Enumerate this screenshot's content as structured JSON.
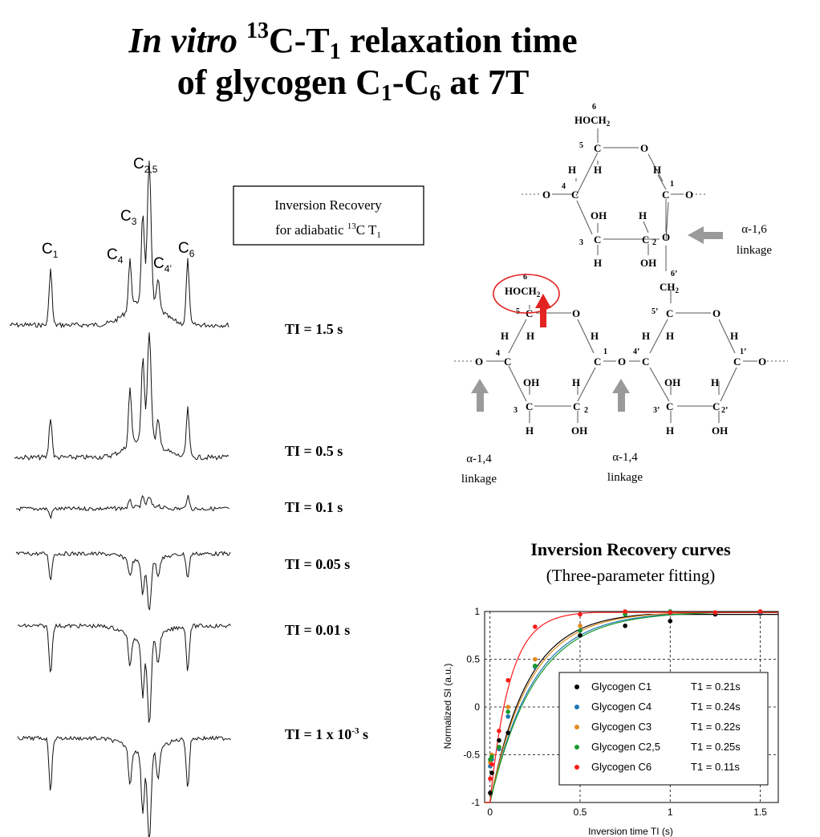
{
  "title": {
    "line1_prefix": "In vitro",
    "line1_iso": "13",
    "line1_mid": "C-T",
    "line1_sub": "1",
    "line1_suffix": " relaxation time",
    "line2_prefix": "of glycogen C",
    "line2_sub1": "1",
    "line2_mid": "-C",
    "line2_sub2": "6",
    "line2_suffix": " at 7T"
  },
  "spectra": {
    "peak_labels": [
      {
        "base": "C",
        "sub": "1"
      },
      {
        "base": "C",
        "sub": "4"
      },
      {
        "base": "C",
        "sub": "3"
      },
      {
        "base": "C",
        "sub": "2,5"
      },
      {
        "base": "C",
        "sub": "4’"
      },
      {
        "base": "C",
        "sub": "6"
      }
    ],
    "inversion_times": [
      "TI = 1.5 s",
      "TI = 0.5 s",
      "TI = 0.1 s",
      "TI = 0.05 s",
      "TI = 0.01 s",
      "TI = 1 x 10"
    ],
    "last_ti_exp": "-3",
    "last_ti_unit": " s",
    "method_box": {
      "line1": "Inversion Recovery",
      "line2_prefix": "for adiabatic ",
      "line2_iso": "13",
      "line2_mid": "C T",
      "line2_sub": "1"
    }
  },
  "structure": {
    "atoms": {
      "hoch2": "HOCH",
      "ch2": "CH",
      "two": "2",
      "c": "C",
      "o": "O",
      "h": "H",
      "oh": "OH",
      "num1": "1",
      "num2": "2",
      "num3": "3",
      "num4": "4",
      "num5": "5",
      "num6": "6",
      "num1p": "1’",
      "num2p": "2’",
      "num3p": "3’",
      "num4p": "4’",
      "num5p": "5’",
      "num6p": "6’"
    },
    "linkage_a16": {
      "name": "α-1,6",
      "word": "linkage"
    },
    "linkage_a14_left": {
      "name": "α-1,4",
      "word": "linkage"
    },
    "linkage_a14_right": {
      "name": "α-1,4",
      "word": "linkage"
    },
    "highlight_color": "#e32222",
    "arrow_color": "#9a9a9a"
  },
  "chart_data": {
    "type": "scatter",
    "title": "Inversion Recovery curves",
    "subtitle": "(Three-parameter fitting)",
    "xlabel": "Inversion time TI (s)",
    "ylabel": "Normalized SI (a.u.)",
    "xlim": [
      -0.03,
      1.6
    ],
    "ylim": [
      -1,
      1
    ],
    "x_ticks": [
      "0",
      "0.5",
      "1",
      "1.5"
    ],
    "y_ticks": [
      "-1",
      "-0.5",
      "0",
      "0.5",
      "1"
    ],
    "grid": true,
    "legend_position": "bottom-right",
    "x": [
      0.001,
      0.01,
      0.05,
      0.1,
      0.25,
      0.5,
      0.75,
      1.0,
      1.25,
      1.5
    ],
    "series": [
      {
        "name": "Glycogen C1",
        "t1_label": "T1 = 0.21s",
        "t1": 0.21,
        "color": "#000000",
        "values": [
          -0.9,
          -0.69,
          -0.35,
          -0.27,
          0.43,
          0.75,
          0.85,
          0.9,
          0.97,
          0.98
        ]
      },
      {
        "name": "Glycogen C4",
        "t1_label": "T1 = 0.24s",
        "t1": 0.24,
        "color": "#1f77b4",
        "values": [
          -0.62,
          -0.55,
          -0.44,
          -0.1,
          0.42,
          0.8,
          0.97,
          0.99,
          0.99,
          0.99
        ]
      },
      {
        "name": "Glycogen C3",
        "t1_label": "T1 = 0.22s",
        "t1": 0.22,
        "color": "#e08a1e",
        "values": [
          -0.58,
          -0.5,
          -0.42,
          0.0,
          0.5,
          0.85,
          0.98,
          1.0,
          0.99,
          1.0
        ]
      },
      {
        "name": "Glycogen C2,5",
        "t1_label": "T1 = 0.25s",
        "t1": 0.25,
        "color": "#1a9a2e",
        "values": [
          -0.55,
          -0.52,
          -0.42,
          -0.05,
          0.43,
          0.8,
          0.97,
          1.0,
          0.99,
          1.0
        ]
      },
      {
        "name": "Glycogen C6",
        "t1_label": "T1 = 0.11s",
        "t1": 0.11,
        "color": "#ff1a1a",
        "values": [
          -0.75,
          -0.6,
          -0.25,
          0.28,
          0.84,
          0.97,
          1.0,
          0.99,
          0.99,
          1.0
        ]
      }
    ]
  }
}
